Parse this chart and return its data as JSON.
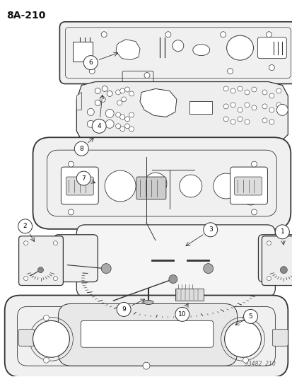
{
  "title": "8A−210",
  "watermark": "93482  210",
  "bg_color": "#ffffff",
  "line_color": "#333333",
  "text_color": "#111111",
  "fig_width": 4.14,
  "fig_height": 5.33,
  "dpi": 100
}
